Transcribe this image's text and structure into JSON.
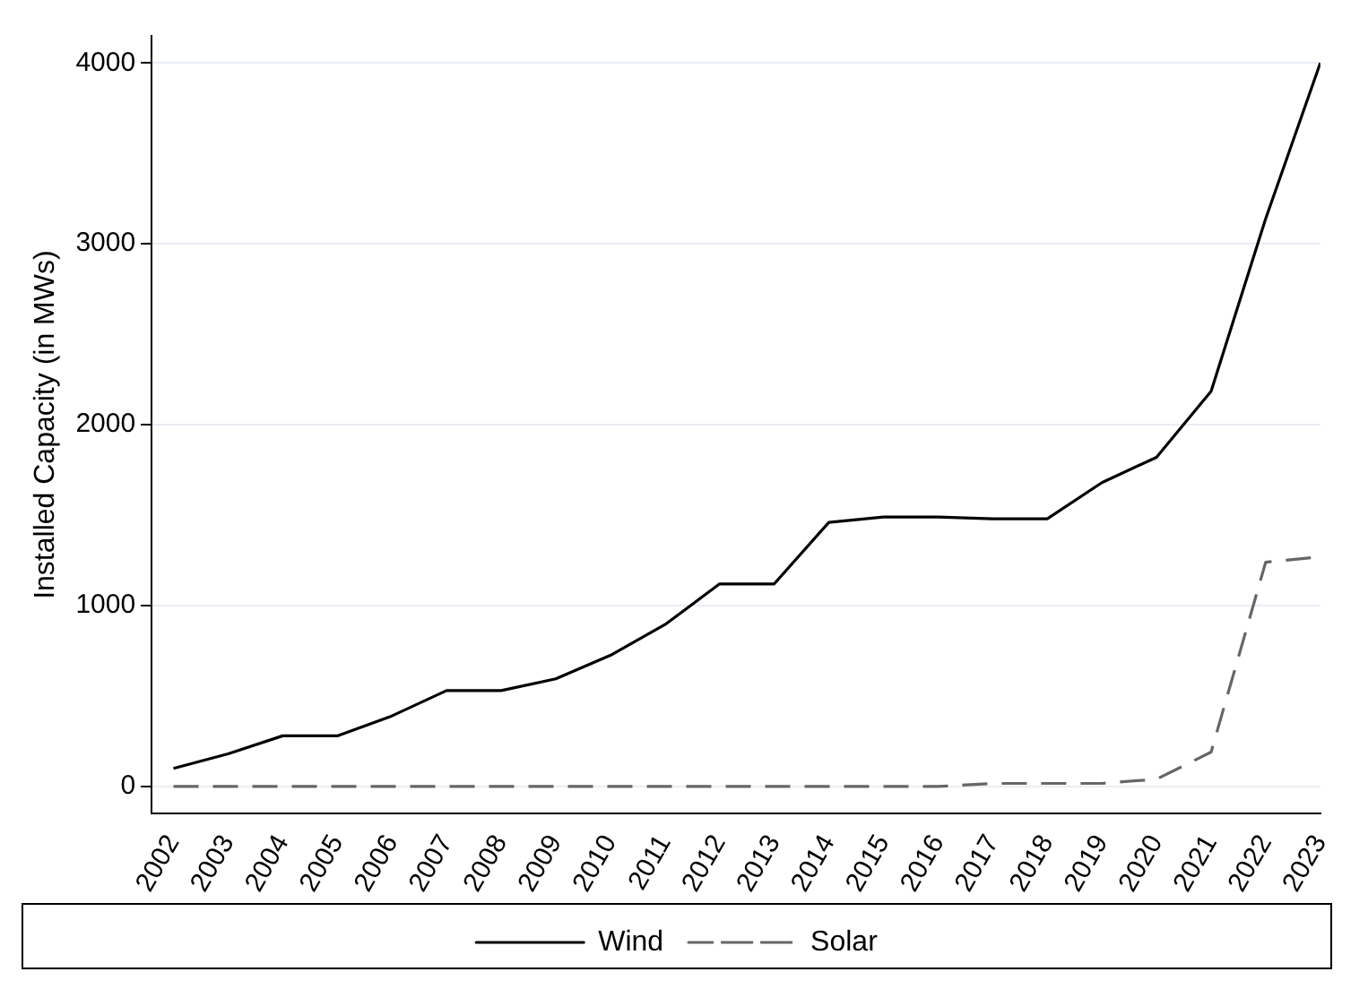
{
  "chart_data": {
    "type": "line",
    "ylabel": "Installed Capacity (in MWs)",
    "x": [
      2002,
      2003,
      2004,
      2005,
      2006,
      2007,
      2008,
      2009,
      2010,
      2011,
      2012,
      2013,
      2014,
      2015,
      2016,
      2017,
      2018,
      2019,
      2020,
      2021,
      2022,
      2023
    ],
    "series": [
      {
        "name": "Wind",
        "color": "#000000",
        "line_style": "solid",
        "values": [
          100,
          180,
          280,
          280,
          390,
          530,
          530,
          595,
          725,
          895,
          1120,
          1120,
          1460,
          1490,
          1490,
          1480,
          1480,
          1680,
          1820,
          2185,
          3140,
          4000
        ]
      },
      {
        "name": "Solar",
        "color": "#666666",
        "line_style": "dashed",
        "values": [
          0,
          0,
          0,
          0,
          0,
          0,
          0,
          0,
          0,
          0,
          0,
          0,
          0,
          0,
          0,
          17,
          17,
          17,
          40,
          190,
          1240,
          1270
        ]
      }
    ],
    "xlim": [
      2001.6,
      2023
    ],
    "xticks": [
      2002,
      2003,
      2004,
      2005,
      2006,
      2007,
      2008,
      2009,
      2010,
      2011,
      2012,
      2013,
      2014,
      2015,
      2016,
      2017,
      2018,
      2019,
      2020,
      2021,
      2022,
      2023
    ],
    "ylim": [
      -150,
      4150
    ],
    "yticks": [
      0,
      1000,
      2000,
      3000,
      4000
    ],
    "grid": "y",
    "legend": "bottom",
    "marker": "none"
  }
}
